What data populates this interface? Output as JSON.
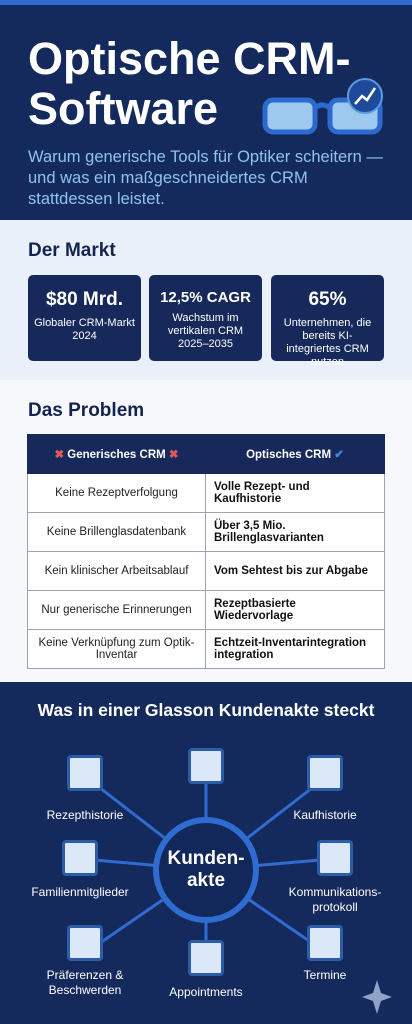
{
  "header": {
    "title_lines": [
      "Optische CRM-",
      "Software"
    ],
    "subtitle": "Warum generische Tools für Optiker scheitern — und was ein maßgeschneidertes CRM stattdessen leistet."
  },
  "market": {
    "heading": "Der Markt",
    "stats": [
      {
        "value": "$80 Mrd.",
        "label": "Globaler CRM-Markt 2024"
      },
      {
        "value": "12,5% CAGR",
        "label": "Wachstum im vertikalen CRM 2025–2035"
      },
      {
        "value": "65%",
        "label": "Unternehmen, die bereits KI-integriertes CRM nutzen"
      }
    ]
  },
  "problem": {
    "heading": "Das Problem",
    "table": {
      "header": [
        "Generisches CRM",
        "Optisches CRM"
      ],
      "rows": [
        [
          "Keine Rezeptverfolgung",
          "Volle Rezept- und Kaufhistorie"
        ],
        [
          "Keine Brillenglasdatenbank",
          "Über 3,5 Mio. Brillenglasvarianten"
        ],
        [
          "Kein klinischer Arbeitsablauf",
          "Vom Sehtest bis zur Abgabe"
        ],
        [
          "Nur generische Erinnerungen",
          "Rezeptbasierte Wiedervorlage"
        ],
        [
          "Keine Verknüpfung zum Optik-Inventar",
          "Echtzeit-Inventarintegration integration"
        ]
      ]
    }
  },
  "hub": {
    "heading": "Was in einer Glasson Kundenakte steckt",
    "center_lines": [
      "Kunden-",
      "akte"
    ],
    "nodes": [
      [
        "Rezepthistorie"
      ],
      [
        "Kaufhistorie"
      ],
      [
        "Familienmitglieder"
      ],
      [
        "Kommunikations-",
        "protokoll"
      ],
      [
        "Präferenzen &",
        "Beschwerden"
      ],
      [
        "Appointments"
      ],
      [
        "Termine"
      ]
    ]
  }
}
